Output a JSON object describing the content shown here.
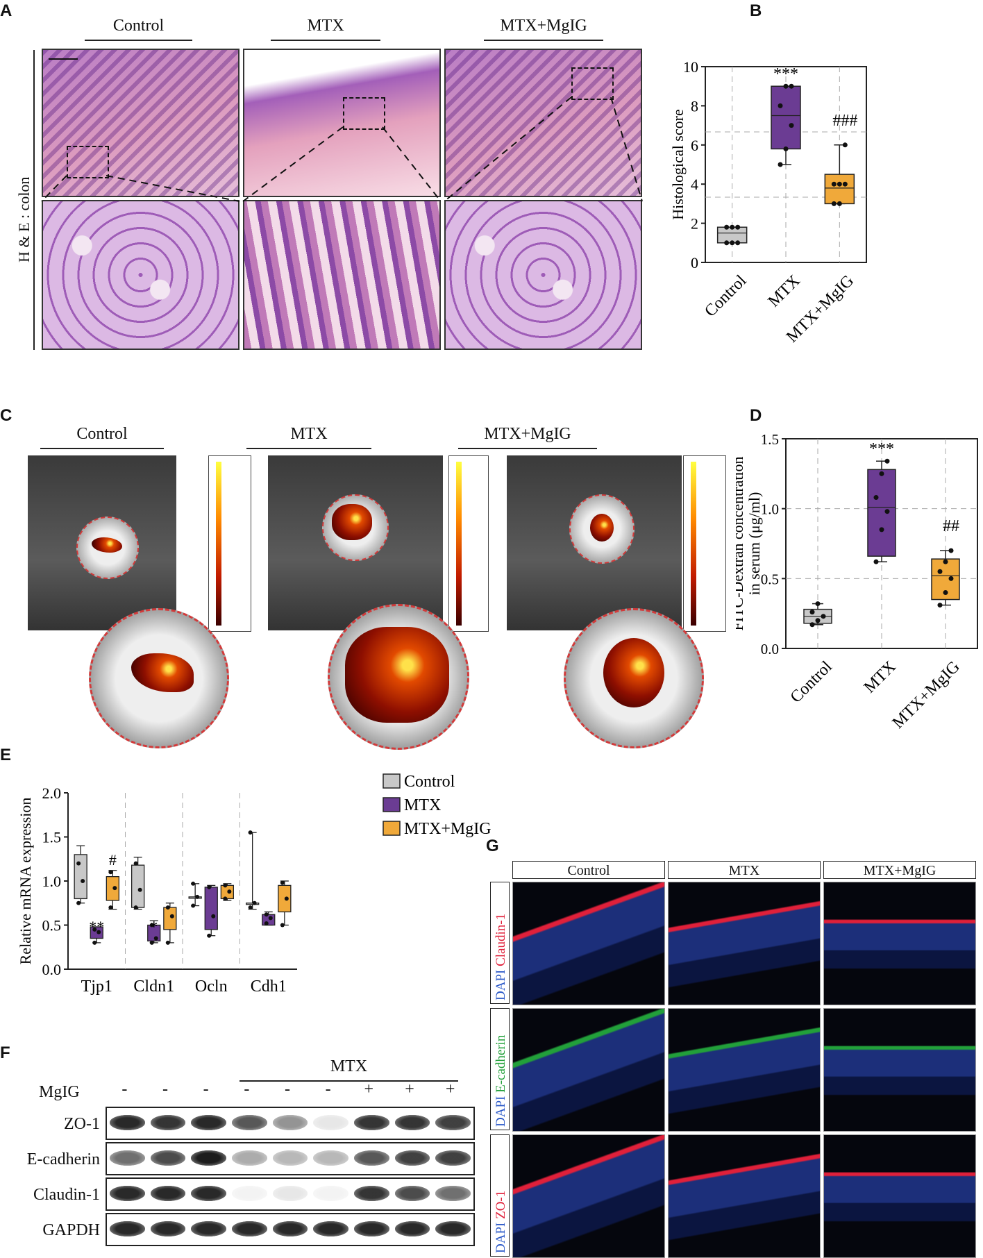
{
  "panels": {
    "A": "A",
    "B": "B",
    "C": "C",
    "D": "D",
    "E": "E",
    "F": "F",
    "G": "G"
  },
  "groups": [
    "Control",
    "MTX",
    "MTX+MgIG"
  ],
  "panelA": {
    "row_label": "H & E : colon"
  },
  "panelG": {
    "headers": [
      "Control",
      "MTX",
      "MTX+MgIG"
    ],
    "rows": [
      {
        "dapi": "DAPI",
        "marker": "Claudin-1",
        "marker_color": "#e0203a"
      },
      {
        "dapi": "DAPI",
        "marker": "E-cadherin",
        "marker_color": "#22a03a"
      },
      {
        "dapi": "DAPI",
        "marker": "ZO-1",
        "marker_color": "#e0203a"
      }
    ],
    "dapi_color": "#2a58c8"
  },
  "panelF": {
    "mtx_label": "MTX",
    "mgig_label": "MgIG",
    "mgig_signs": [
      "-",
      "-",
      "-",
      "-",
      "-",
      "-",
      "+",
      "+",
      "+"
    ],
    "blots": [
      "ZO-1",
      "E-cadherin",
      "Claudin-1",
      "GAPDH"
    ],
    "band_intensity": [
      [
        0.9,
        0.85,
        0.9,
        0.7,
        0.45,
        0.1,
        0.85,
        0.85,
        0.8
      ],
      [
        0.6,
        0.75,
        0.95,
        0.35,
        0.3,
        0.3,
        0.7,
        0.8,
        0.8
      ],
      [
        0.9,
        0.9,
        0.9,
        0.05,
        0.1,
        0.05,
        0.85,
        0.75,
        0.6
      ],
      [
        0.9,
        0.9,
        0.9,
        0.9,
        0.9,
        0.9,
        0.9,
        0.9,
        0.9
      ]
    ]
  },
  "colors": {
    "control": "#c8c8c8",
    "mtx": "#6b3c93",
    "mgig": "#f0a93a"
  },
  "chart_data": [
    {
      "panel": "B",
      "type": "box",
      "categories": [
        "Control",
        "MTX",
        "MTX+MgIG"
      ],
      "ylabel": "Histological score",
      "ylim": [
        0,
        10
      ],
      "yticks": [
        0,
        2,
        4,
        6,
        8,
        10
      ],
      "boxes": [
        {
          "q1": 1.0,
          "median": 1.5,
          "q3": 1.8,
          "min": 1.0,
          "max": 1.8,
          "points": [
            1.0,
            1.0,
            1.0,
            1.8,
            1.8,
            1.8
          ]
        },
        {
          "q1": 5.8,
          "median": 7.5,
          "q3": 9.0,
          "min": 5.0,
          "max": 9.0,
          "points": [
            5.0,
            5.8,
            7.0,
            8.0,
            9.0,
            9.0
          ]
        },
        {
          "q1": 3.0,
          "median": 3.8,
          "q3": 4.5,
          "min": 3.0,
          "max": 6.0,
          "points": [
            3.0,
            3.0,
            4.0,
            4.0,
            4.0,
            6.0
          ]
        }
      ],
      "annotations": [
        "",
        "***",
        "###"
      ],
      "grid": true
    },
    {
      "panel": "D",
      "type": "box",
      "categories": [
        "Control",
        "MTX",
        "MTX+MgIG"
      ],
      "ylabel": "FITC-Dextran concentration in serum (μg/ml)",
      "ylabel_lines": [
        "FITC-Dextran concentration",
        "in serum (μg/ml)"
      ],
      "ylim": [
        0,
        1.5
      ],
      "yticks": [
        0.0,
        0.5,
        1.0,
        1.5
      ],
      "boxes": [
        {
          "q1": 0.18,
          "median": 0.23,
          "q3": 0.28,
          "min": 0.17,
          "max": 0.32,
          "points": [
            0.17,
            0.2,
            0.23,
            0.26,
            0.32
          ]
        },
        {
          "q1": 0.66,
          "median": 1.01,
          "q3": 1.28,
          "min": 0.62,
          "max": 1.34,
          "points": [
            0.62,
            0.85,
            0.98,
            1.08,
            1.25,
            1.34
          ]
        },
        {
          "q1": 0.35,
          "median": 0.52,
          "q3": 0.64,
          "min": 0.31,
          "max": 0.7,
          "points": [
            0.31,
            0.4,
            0.5,
            0.55,
            0.62,
            0.7
          ]
        }
      ],
      "annotations": [
        "",
        "***",
        "##"
      ],
      "grid": true
    },
    {
      "panel": "E",
      "type": "box",
      "categories": [
        "Tjp1",
        "Cldn1",
        "Ocln",
        "Cdh1"
      ],
      "ylabel": "Relative mRNA expression",
      "ylim": [
        0,
        2.0
      ],
      "yticks": [
        0.0,
        0.5,
        1.0,
        1.5,
        2.0
      ],
      "legend": [
        "Control",
        "MTX",
        "MTX+MgIG"
      ],
      "series": [
        {
          "name": "Control",
          "boxes": [
            {
              "q1": 0.8,
              "median": 1.0,
              "q3": 1.3,
              "min": 0.75,
              "max": 1.4,
              "points": [
                0.75,
                1.0,
                1.2
              ]
            },
            {
              "q1": 0.7,
              "median": 0.82,
              "q3": 1.18,
              "min": 0.68,
              "max": 1.27,
              "points": [
                0.7,
                0.9,
                1.2
              ]
            },
            {
              "q1": 0.82,
              "median": 0.82,
              "q3": 0.82,
              "min": 0.72,
              "max": 0.97,
              "points": [
                0.72,
                0.82,
                0.97
              ]
            },
            {
              "q1": 0.75,
              "median": 0.75,
              "q3": 0.75,
              "min": 0.68,
              "max": 1.55,
              "points": [
                0.7,
                0.75,
                1.55
              ]
            }
          ]
        },
        {
          "name": "MTX",
          "boxes": [
            {
              "q1": 0.35,
              "median": 0.42,
              "q3": 0.48,
              "min": 0.3,
              "max": 0.48,
              "points": [
                0.3,
                0.42,
                0.45
              ]
            },
            {
              "q1": 0.32,
              "median": 0.38,
              "q3": 0.5,
              "min": 0.3,
              "max": 0.55,
              "points": [
                0.3,
                0.35,
                0.5
              ]
            },
            {
              "q1": 0.45,
              "median": 0.7,
              "q3": 0.93,
              "min": 0.38,
              "max": 0.95,
              "points": [
                0.38,
                0.6,
                0.93
              ]
            },
            {
              "q1": 0.5,
              "median": 0.55,
              "q3": 0.62,
              "min": 0.5,
              "max": 0.65,
              "points": [
                0.52,
                0.58,
                0.62
              ]
            }
          ]
        },
        {
          "name": "MTX+MgIG",
          "boxes": [
            {
              "q1": 0.78,
              "median": 0.92,
              "q3": 1.05,
              "min": 0.68,
              "max": 1.12,
              "points": [
                0.7,
                0.92,
                1.1
              ]
            },
            {
              "q1": 0.45,
              "median": 0.6,
              "q3": 0.7,
              "min": 0.3,
              "max": 0.75,
              "points": [
                0.3,
                0.6,
                0.7
              ]
            },
            {
              "q1": 0.8,
              "median": 0.88,
              "q3": 0.95,
              "min": 0.78,
              "max": 0.97,
              "points": [
                0.8,
                0.88,
                0.95
              ]
            },
            {
              "q1": 0.65,
              "median": 0.8,
              "q3": 0.95,
              "min": 0.5,
              "max": 1.0,
              "points": [
                0.5,
                0.8,
                0.98
              ]
            }
          ]
        }
      ],
      "annotations": [
        [
          "",
          "**",
          "#"
        ],
        [
          "",
          "*",
          ""
        ],
        [
          "",
          "",
          ""
        ],
        [
          "",
          "",
          ""
        ]
      ]
    }
  ]
}
